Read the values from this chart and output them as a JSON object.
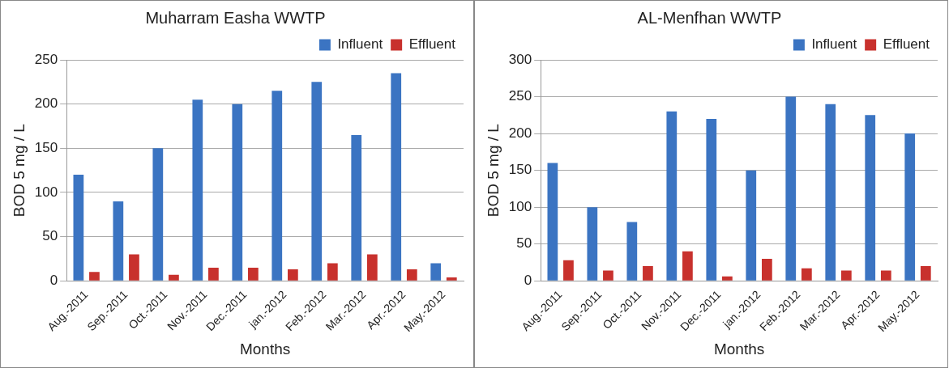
{
  "chart_data": [
    {
      "type": "bar",
      "title": "Muharram Easha WWTP",
      "xlabel": "Months",
      "ylabel": "BOD 5 mg / L",
      "categories": [
        "Aug.-2011",
        "Sep.-2011",
        "Oct.-2011",
        "Nov.-2011",
        "Dec.-2011",
        "jan.-2012",
        "Feb.-2012",
        "Mar.-2012",
        "Apr.-2012",
        "May.-2012"
      ],
      "series": [
        {
          "name": "Influent",
          "color": "#3b74c2",
          "values": [
            120,
            90,
            150,
            205,
            200,
            215,
            225,
            165,
            235,
            20
          ]
        },
        {
          "name": "Effluent",
          "color": "#c8312d",
          "values": [
            10,
            30,
            7,
            15,
            15,
            13,
            20,
            30,
            13,
            4
          ]
        }
      ],
      "ylim": [
        0,
        250
      ],
      "yticks": [
        0,
        50,
        100,
        150,
        200,
        250
      ],
      "grid": "y",
      "legend": "top right"
    },
    {
      "type": "bar",
      "title": "AL-Menfhan WWTP",
      "xlabel": "Months",
      "ylabel": "BOD 5 mg / L",
      "categories": [
        "Aug.-2011",
        "Sep.-2011",
        "Oct.-2011",
        "Nov.-2011",
        "Dec.-2011",
        "jan.-2012",
        "Feb.-2012",
        "Mar.-2012",
        "Apr.-2012",
        "May.-2012"
      ],
      "series": [
        {
          "name": "Influent",
          "color": "#3b74c2",
          "values": [
            160,
            100,
            80,
            230,
            220,
            150,
            250,
            240,
            225,
            200
          ]
        },
        {
          "name": "Effluent",
          "color": "#c8312d",
          "values": [
            28,
            14,
            20,
            40,
            6,
            30,
            17,
            14,
            14,
            20
          ]
        }
      ],
      "ylim": [
        0,
        300
      ],
      "yticks": [
        0,
        50,
        100,
        150,
        200,
        250,
        300
      ],
      "grid": "y",
      "legend": "top right"
    }
  ]
}
